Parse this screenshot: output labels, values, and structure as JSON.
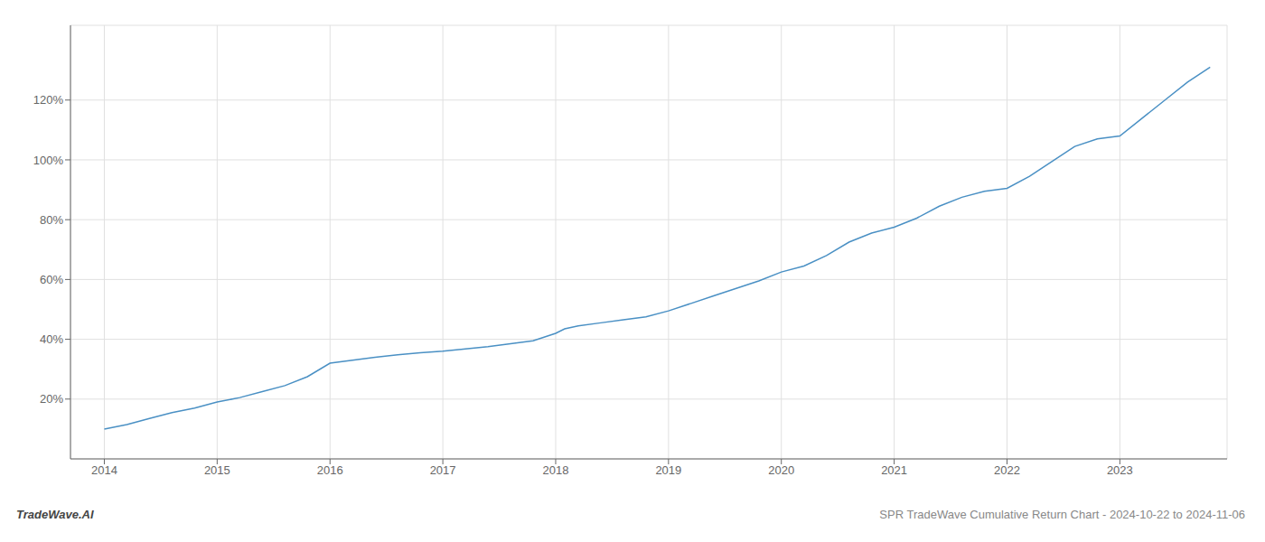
{
  "chart_data": {
    "type": "line",
    "annotations": [
      "TradeWave.AI",
      "SPR TradeWave Cumulative Return Chart - 2024-10-22 to 2024-11-06"
    ],
    "x": [
      2014.0,
      2014.2,
      2014.4,
      2014.6,
      2014.8,
      2015.0,
      2015.2,
      2015.4,
      2015.6,
      2015.8,
      2016.0,
      2016.2,
      2016.4,
      2016.6,
      2016.8,
      2017.0,
      2017.2,
      2017.4,
      2017.6,
      2017.8,
      2018.0,
      2018.08,
      2018.2,
      2018.4,
      2018.6,
      2018.8,
      2019.0,
      2019.2,
      2019.4,
      2019.6,
      2019.8,
      2020.0,
      2020.2,
      2020.4,
      2020.6,
      2020.8,
      2021.0,
      2021.2,
      2021.4,
      2021.6,
      2021.8,
      2022.0,
      2022.2,
      2022.4,
      2022.6,
      2022.8,
      2023.0,
      2023.2,
      2023.4,
      2023.6,
      2023.8
    ],
    "values": [
      10.0,
      11.5,
      13.5,
      15.5,
      17.0,
      19.0,
      20.5,
      22.5,
      24.5,
      27.5,
      32.0,
      33.0,
      34.0,
      34.8,
      35.5,
      36.0,
      36.8,
      37.5,
      38.5,
      39.5,
      42.0,
      43.5,
      44.5,
      45.5,
      46.5,
      47.5,
      49.5,
      52.0,
      54.5,
      57.0,
      59.5,
      62.5,
      64.5,
      68.0,
      72.5,
      75.5,
      77.5,
      80.5,
      84.5,
      87.5,
      89.5,
      90.5,
      94.5,
      99.5,
      104.5,
      107.0,
      108.0,
      114.0,
      120.0,
      126.0,
      131.0
    ],
    "color": "#4a90c4",
    "xlim": [
      2013.7,
      2023.95
    ],
    "ylim": [
      0,
      145
    ],
    "xticks": [
      2014,
      2015,
      2016,
      2017,
      2018,
      2019,
      2020,
      2021,
      2022,
      2023
    ],
    "yticks": [
      {
        "value": 20,
        "label": "20%"
      },
      {
        "value": 40,
        "label": "40%"
      },
      {
        "value": 60,
        "label": "60%"
      },
      {
        "value": 80,
        "label": "80%"
      },
      {
        "value": 100,
        "label": "100%"
      },
      {
        "value": 120,
        "label": "120%"
      }
    ],
    "grid": true
  }
}
